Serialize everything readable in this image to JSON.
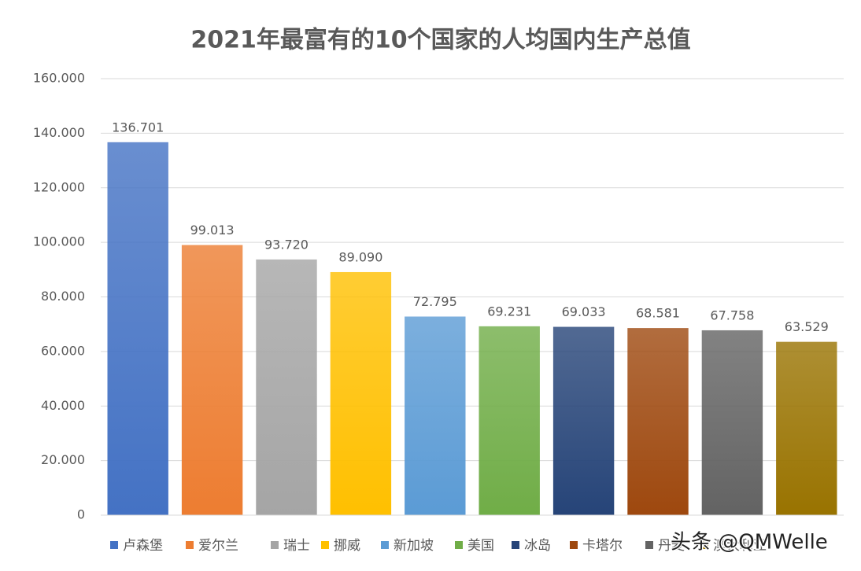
{
  "chart_data": {
    "type": "bar",
    "title": "2021年最富有的10个国家的人均国内生产总值",
    "categories": [
      "卢森堡",
      "爱尔兰",
      "瑞士",
      "挪威",
      "新加坡",
      "美国",
      "冰岛",
      "卡塔尔",
      "丹麦",
      "澳大利亚"
    ],
    "values": [
      136.701,
      99.013,
      93.72,
      89.09,
      72.795,
      69.231,
      69.033,
      68.581,
      67.758,
      63.529
    ],
    "value_labels": [
      "136.701",
      "99.013",
      "93.720",
      "89.090",
      "72.795",
      "69.231",
      "69.033",
      "68.581",
      "67.758",
      "63.529"
    ],
    "colors": [
      "#4472c4",
      "#ed7d31",
      "#a5a5a5",
      "#ffc000",
      "#5b9bd5",
      "#70ad47",
      "#264478",
      "#9e480e",
      "#636363",
      "#997300"
    ],
    "ylim": [
      0,
      160
    ],
    "yticks": [
      0,
      {
        "value": 20,
        "label": "20.000"
      },
      {
        "value": 40,
        "label": "40.000"
      },
      {
        "value": 60,
        "label": "60.000"
      },
      {
        "value": 80,
        "label": "80.000"
      },
      {
        "value": 100,
        "label": "100.000"
      },
      {
        "value": 120,
        "label": "120.000"
      },
      {
        "value": 140,
        "label": "140.000"
      },
      {
        "value": 160,
        "label": "160.000"
      }
    ],
    "grid": true,
    "legend": "bottom"
  },
  "watermark": "头条 @QMWelle"
}
